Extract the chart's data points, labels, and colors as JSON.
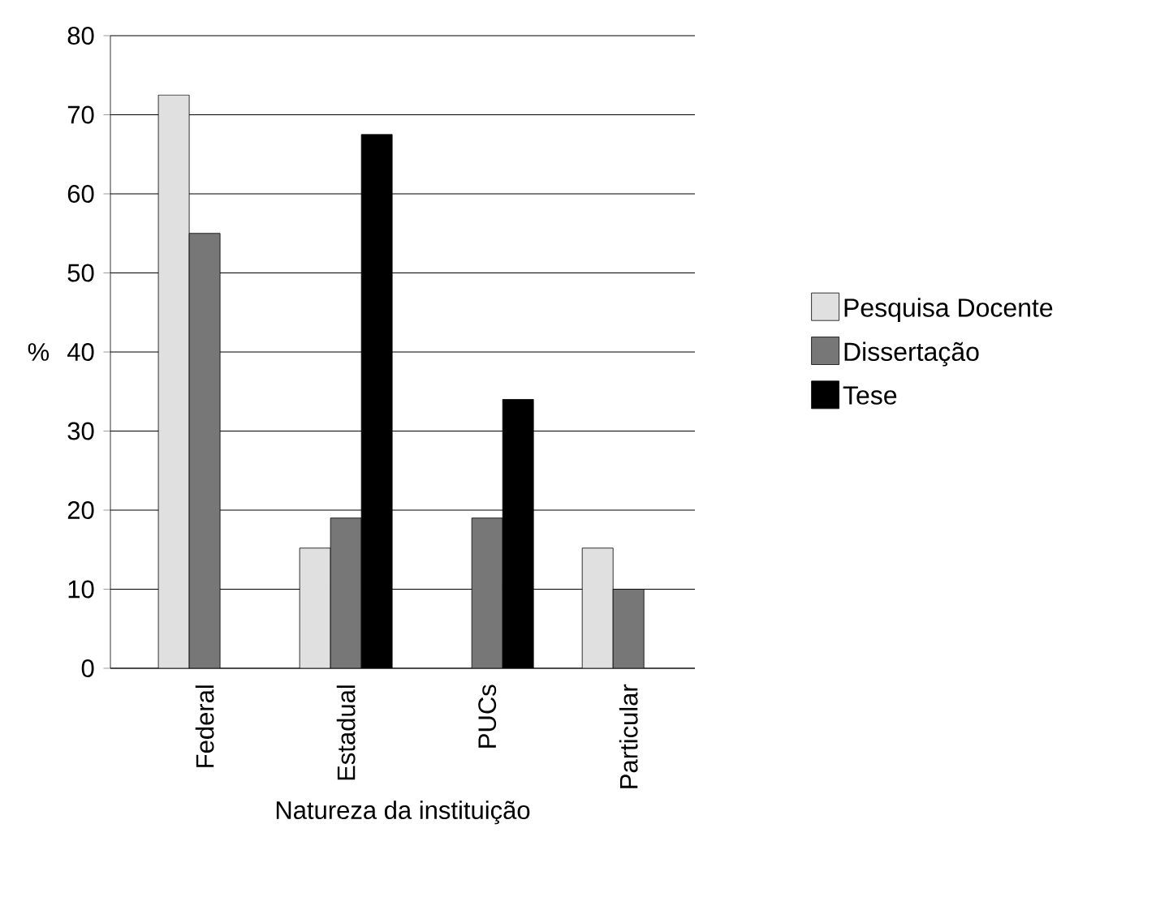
{
  "chart_data": {
    "type": "bar",
    "xlabel": "Natureza da instituição",
    "ylabel": "%",
    "categories": [
      "Federal",
      "Estadual",
      "PUCs",
      "Particular"
    ],
    "series": [
      {
        "name": "Pesquisa Docente",
        "color": "#e0e0e0",
        "values": [
          72.5,
          15.2,
          null,
          15.2
        ]
      },
      {
        "name": "Dissertação",
        "color": "#777777",
        "values": [
          55,
          19,
          19,
          10
        ]
      },
      {
        "name": "Tese",
        "color": "#000000",
        "values": [
          null,
          67.5,
          34,
          null
        ]
      }
    ],
    "ylim": [
      0,
      80
    ],
    "yticks": [
      0,
      10,
      20,
      30,
      40,
      50,
      60,
      70,
      80
    ],
    "grid": "y",
    "legend": "right"
  }
}
